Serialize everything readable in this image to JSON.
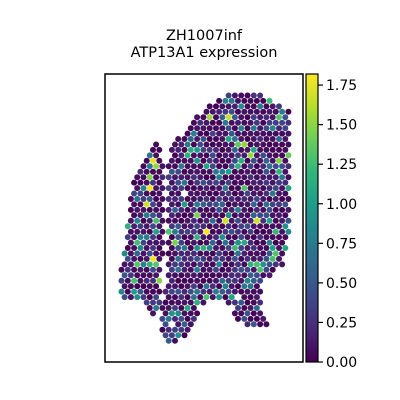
{
  "chart_data": {
    "type": "scatter",
    "subtype": "spatial-hex-spots",
    "title_line1": "ZH1007inf",
    "title_line2": "ATP13A1 expression",
    "xlabel": "",
    "ylabel": "",
    "axis_ticks_visible": false,
    "grid": false,
    "colormap": "viridis",
    "colorbar": {
      "placement": "right",
      "range": [
        0,
        1.82
      ],
      "tick_values": [
        0,
        0.25,
        0.5,
        0.75,
        1.0,
        1.25,
        1.5,
        1.75
      ],
      "tick_labels": [
        "0.00",
        "0.25",
        "0.50",
        "0.75",
        "1.00",
        "1.25",
        "1.50",
        "1.75"
      ]
    },
    "value_summary": {
      "dominant_value_range": [
        0,
        0.5
      ],
      "typical_value": 0.1,
      "max_value": 1.82
    },
    "tissue_regions": [
      "left-strip",
      "main-body"
    ]
  },
  "colors": {
    "viridis_stops": [
      "#440154",
      "#482878",
      "#3e4989",
      "#31688e",
      "#26828e",
      "#1f9e89",
      "#35b779",
      "#6ece58",
      "#b5de2b",
      "#fde725"
    ],
    "frame": "#000000",
    "background": "#ffffff"
  }
}
